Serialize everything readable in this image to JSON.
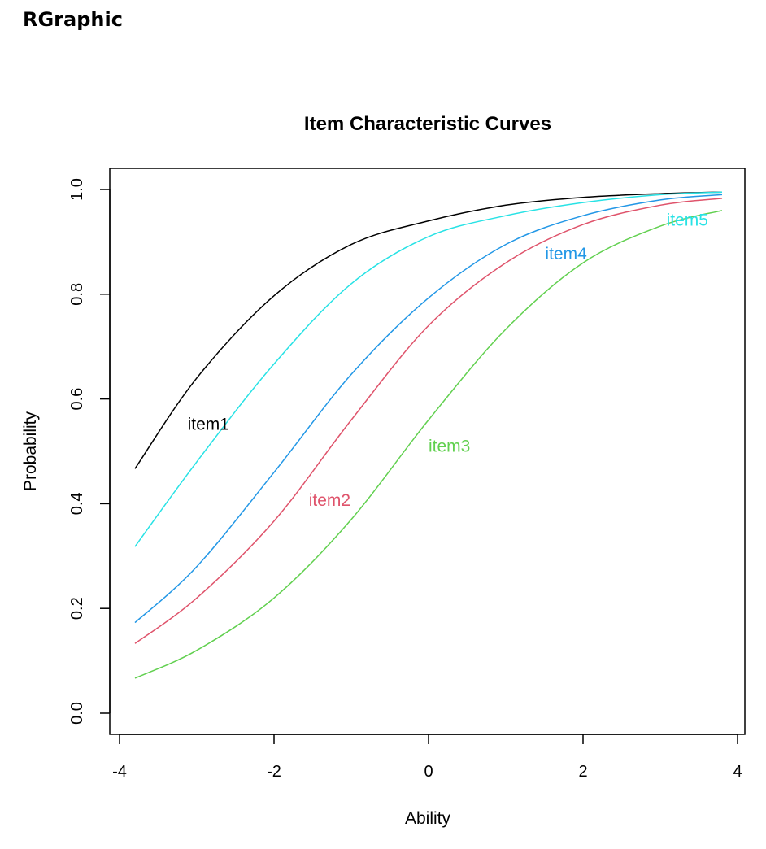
{
  "window": {
    "title": "RGraphic"
  },
  "chart_data": {
    "type": "line",
    "title": "Item Characteristic Curves",
    "xlabel": "Ability",
    "ylabel": "Probability",
    "xlim": [
      -4,
      4
    ],
    "ylim": [
      0,
      1
    ],
    "xticks": [
      -4,
      -2,
      0,
      2,
      4
    ],
    "yticks": [
      0.0,
      0.2,
      0.4,
      0.6,
      0.8,
      1.0
    ],
    "xtick_labels": [
      "-4",
      "-2",
      "0",
      "2",
      "4"
    ],
    "ytick_labels": [
      "0.0",
      "0.2",
      "0.4",
      "0.6",
      "0.8",
      "1.0"
    ],
    "grid": false,
    "series": [
      {
        "name": "item1",
        "color": "#000000",
        "label_at": [
          -2.85,
          0.552
        ],
        "x": [
          -3.8,
          -3.0,
          -2.0,
          -1.0,
          0.0,
          1.0,
          2.0,
          3.0,
          3.8
        ],
        "y": [
          0.467,
          0.64,
          0.797,
          0.895,
          0.94,
          0.97,
          0.985,
          0.992,
          0.995
        ]
      },
      {
        "name": "item2",
        "color": "#DF536B",
        "label_at": [
          -1.28,
          0.407
        ],
        "x": [
          -3.8,
          -3.0,
          -2.0,
          -1.0,
          0.0,
          1.0,
          2.0,
          3.0,
          3.8
        ],
        "y": [
          0.133,
          0.22,
          0.367,
          0.56,
          0.74,
          0.86,
          0.933,
          0.97,
          0.983
        ]
      },
      {
        "name": "item3",
        "color": "#61D04F",
        "label_at": [
          0.27,
          0.51
        ],
        "x": [
          -3.8,
          -3.0,
          -2.0,
          -1.0,
          0.0,
          1.0,
          2.0,
          3.0,
          3.8
        ],
        "y": [
          0.067,
          0.12,
          0.22,
          0.37,
          0.56,
          0.733,
          0.86,
          0.93,
          0.96
        ]
      },
      {
        "name": "item4",
        "color": "#2297E6",
        "label_at": [
          1.78,
          0.877
        ],
        "x": [
          -3.8,
          -3.0,
          -2.0,
          -1.0,
          0.0,
          1.0,
          2.0,
          3.0,
          3.8
        ],
        "y": [
          0.173,
          0.28,
          0.46,
          0.647,
          0.793,
          0.895,
          0.95,
          0.98,
          0.99
        ]
      },
      {
        "name": "item5",
        "color": "#28E2E5",
        "label_at": [
          3.35,
          0.942
        ],
        "x": [
          -3.8,
          -3.0,
          -2.0,
          -1.0,
          0.0,
          1.0,
          2.0,
          3.0,
          3.8
        ],
        "y": [
          0.318,
          0.48,
          0.667,
          0.82,
          0.91,
          0.95,
          0.975,
          0.99,
          0.995
        ]
      }
    ]
  }
}
